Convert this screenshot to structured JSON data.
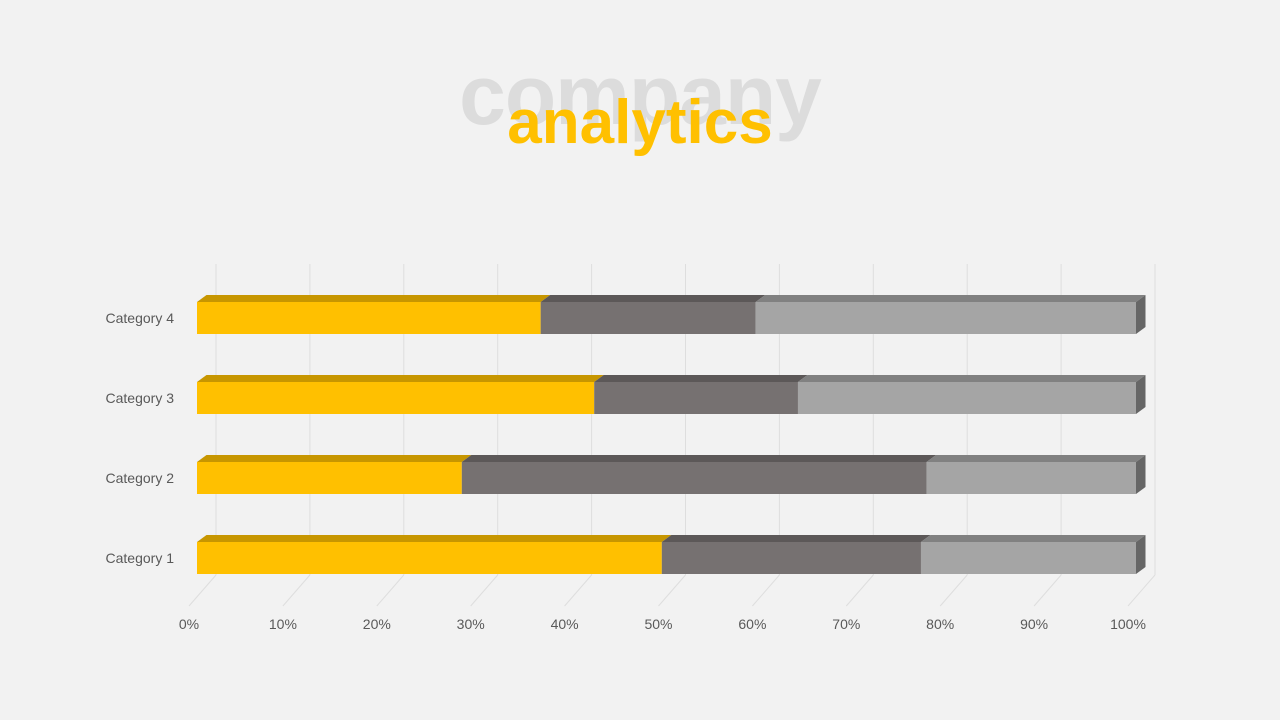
{
  "slide": {
    "title_background": "company",
    "title_foreground": "analytics"
  },
  "colors": {
    "background": "#f2f2f2",
    "accent": "#ffc000",
    "series2": "#767171",
    "series3": "#a5a5a5",
    "gridline": "#dedede",
    "label": "#595959"
  },
  "chart_data": {
    "type": "bar",
    "orientation": "horizontal",
    "stacked": "percent",
    "style": "3d",
    "categories": [
      "Category 1",
      "Category 2",
      "Category 3",
      "Category 4"
    ],
    "series": [
      {
        "values": [
          49.5,
          28.2,
          42.3,
          36.6
        ],
        "color": "#ffc000"
      },
      {
        "values": [
          27.6,
          49.5,
          21.7,
          22.9
        ],
        "color": "#767171"
      },
      {
        "values": [
          22.9,
          22.3,
          36.0,
          40.5
        ],
        "color": "#a5a5a5"
      }
    ],
    "xticks": [
      "0%",
      "10%",
      "20%",
      "30%",
      "40%",
      "50%",
      "60%",
      "70%",
      "80%",
      "90%",
      "100%"
    ],
    "xlim": [
      0,
      100
    ],
    "grid": true,
    "legend": "none"
  }
}
